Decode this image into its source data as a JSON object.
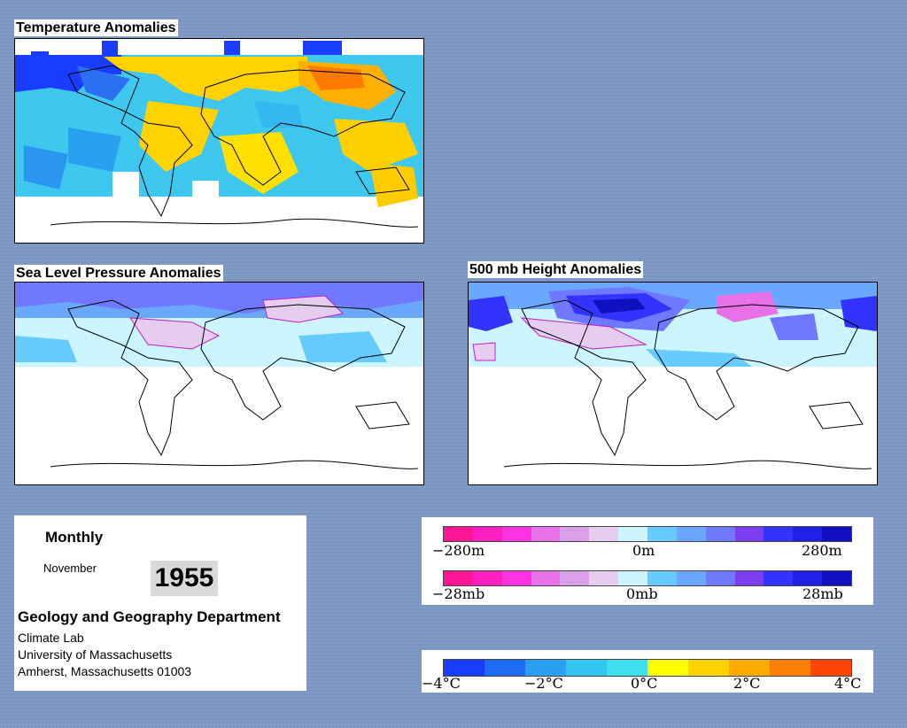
{
  "panels": {
    "temperature": {
      "title": "Temperature Anomalies"
    },
    "slp": {
      "title": "Sea Level Pressure Anomalies"
    },
    "height": {
      "title": "500 mb Height Anomalies"
    }
  },
  "info": {
    "frequency": "Monthly",
    "month": "November",
    "year": "1955",
    "department": "Geology and Geography Department",
    "lab": "Climate Lab",
    "university": "University of Massachusetts",
    "address": "Amherst, Massachusetts 01003"
  },
  "height_legend": {
    "labels": [
      "−280m",
      "0m",
      "280m"
    ],
    "colors": [
      "#ff1493",
      "#ff1ec0",
      "#ff33e0",
      "#e870e8",
      "#d9a0e8",
      "#e6cdf0",
      "#ccf5ff",
      "#66ccff",
      "#6aa8ff",
      "#6f78ff",
      "#7a3df0",
      "#3333ff",
      "#2020e8",
      "#1010c0"
    ]
  },
  "pressure_legend": {
    "labels": [
      "−28mb",
      "0mb",
      "28mb"
    ],
    "colors": [
      "#ff1493",
      "#ff1ec0",
      "#ff33e0",
      "#e870e8",
      "#d9a0e8",
      "#e6cdf0",
      "#ccf5ff",
      "#66ccff",
      "#6aa8ff",
      "#6f78ff",
      "#7a3df0",
      "#3333ff",
      "#2020e8",
      "#1010c0"
    ]
  },
  "temp_legend": {
    "labels": [
      "−4°C",
      "−2°C",
      "0°C",
      "2°C",
      "4°C"
    ],
    "colors": [
      "#1a3cff",
      "#1e6cf5",
      "#2aa0f0",
      "#33c6f0",
      "#3ee0f0",
      "#ffff00",
      "#ffd200",
      "#ffaa00",
      "#ff7f00",
      "#ff4400"
    ]
  }
}
